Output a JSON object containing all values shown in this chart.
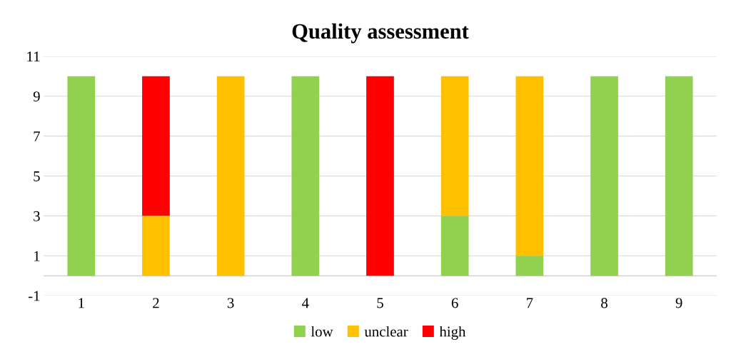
{
  "chart_data": {
    "type": "bar",
    "title": "Quality assessment",
    "stacked": true,
    "categories": [
      "1",
      "2",
      "3",
      "4",
      "5",
      "6",
      "7",
      "8",
      "9"
    ],
    "series": [
      {
        "name": "low",
        "color": "#92d050",
        "values": [
          10,
          0,
          0,
          10,
          0,
          3,
          1,
          10,
          10
        ]
      },
      {
        "name": "unclear",
        "color": "#ffc000",
        "values": [
          0,
          3,
          10,
          0,
          0,
          7,
          9,
          0,
          0
        ]
      },
      {
        "name": "high",
        "color": "#ff0000",
        "values": [
          0,
          7,
          0,
          0,
          10,
          0,
          0,
          0,
          0
        ]
      }
    ],
    "ylim": [
      -1,
      11
    ],
    "yticks": [
      -1,
      1,
      3,
      5,
      7,
      9,
      11
    ],
    "grid": "y",
    "legend": "bottom"
  }
}
